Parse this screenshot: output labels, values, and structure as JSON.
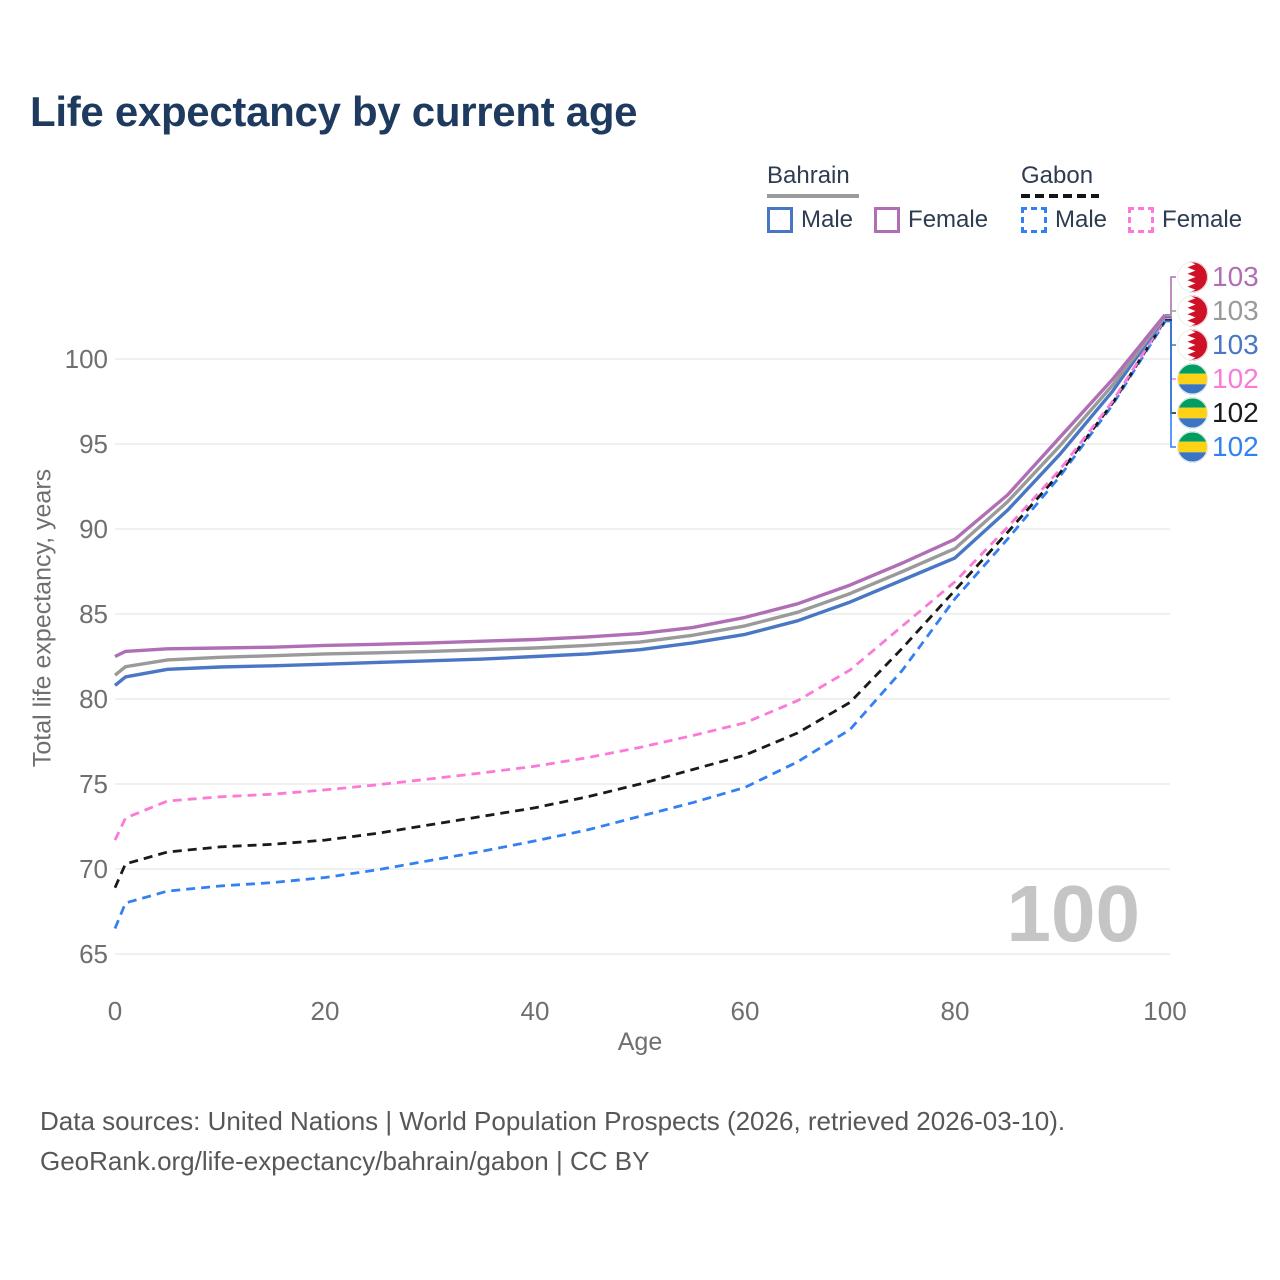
{
  "title": "Life expectancy by current age",
  "watermark": "100",
  "legend": {
    "groups": [
      {
        "label": "Bahrain",
        "line_style": "solid",
        "items": [
          {
            "label": "Male",
            "color": "#4a77c4"
          },
          {
            "label": "Female",
            "color": "#b06fb5"
          }
        ]
      },
      {
        "label": "Gabon",
        "line_style": "dashed",
        "items": [
          {
            "label": "Male",
            "color": "#3380f3"
          },
          {
            "label": "Female",
            "color": "#fb7ad8"
          }
        ]
      }
    ]
  },
  "footer": {
    "line1": "Data sources: United Nations | World Population Prospects (2026, retrieved 2026-03-10).",
    "line2": "GeoRank.org/life-expectancy/bahrain/gabon | CC BY"
  },
  "chart_data": {
    "type": "line",
    "title": "Life expectancy by current age",
    "xlabel": "Age",
    "ylabel": "Total life expectancy, years",
    "xlim": [
      0,
      100
    ],
    "ylim": [
      65,
      103
    ],
    "x_ticks": [
      0,
      20,
      40,
      60,
      80,
      100
    ],
    "y_ticks": [
      65,
      70,
      75,
      80,
      85,
      90,
      95,
      100
    ],
    "grid": "horizontal",
    "x": [
      0,
      1,
      5,
      10,
      15,
      20,
      25,
      30,
      35,
      40,
      45,
      50,
      55,
      60,
      65,
      70,
      75,
      80,
      85,
      90,
      95,
      100
    ],
    "series": [
      {
        "id": "bahrain-female",
        "name": "Bahrain Female",
        "country": "Bahrain",
        "sex": "Female",
        "color": "#b06fb5",
        "dash": "solid",
        "flag": "bahrain",
        "end_label": "103",
        "values": [
          82.5,
          82.8,
          82.95,
          83.0,
          83.05,
          83.15,
          83.22,
          83.3,
          83.4,
          83.5,
          83.65,
          83.85,
          84.2,
          84.8,
          85.6,
          86.7,
          88.0,
          89.4,
          92.0,
          95.4,
          98.8,
          102.6
        ]
      },
      {
        "id": "bahrain-both-sexes",
        "name": "Bahrain Both sexes",
        "country": "Bahrain",
        "sex": "Both sexes",
        "color": "#9a9a9a",
        "dash": "solid",
        "flag": "bahrain",
        "end_label": "103",
        "values": [
          81.4,
          81.9,
          82.3,
          82.45,
          82.55,
          82.65,
          82.72,
          82.8,
          82.9,
          83.0,
          83.15,
          83.35,
          83.75,
          84.3,
          85.1,
          86.2,
          87.5,
          88.85,
          91.6,
          94.9,
          98.45,
          102.5
        ]
      },
      {
        "id": "bahrain-male",
        "name": "Bahrain Male",
        "country": "Bahrain",
        "sex": "Male",
        "color": "#4a77c4",
        "dash": "solid",
        "flag": "bahrain",
        "end_label": "103",
        "values": [
          80.8,
          81.3,
          81.75,
          81.88,
          81.95,
          82.05,
          82.15,
          82.25,
          82.35,
          82.5,
          82.65,
          82.9,
          83.3,
          83.8,
          84.6,
          85.7,
          87.0,
          88.3,
          91.1,
          94.4,
          98.1,
          102.45
        ]
      },
      {
        "id": "gabon-female",
        "name": "Gabon Female",
        "country": "Gabon",
        "sex": "Female",
        "color": "#fb7ad8",
        "dash": "dashed",
        "flag": "gabon",
        "end_label": "102",
        "values": [
          71.7,
          73.0,
          74.0,
          74.25,
          74.4,
          74.65,
          74.95,
          75.3,
          75.65,
          76.05,
          76.55,
          77.15,
          77.85,
          78.6,
          79.9,
          81.7,
          84.3,
          86.9,
          90.1,
          93.5,
          97.5,
          102.35
        ]
      },
      {
        "id": "gabon-both-sexes",
        "name": "Gabon Both sexes",
        "country": "Gabon",
        "sex": "Both sexes",
        "color": "#1a1a1a",
        "dash": "dashed",
        "flag": "gabon",
        "end_label": "102",
        "values": [
          68.9,
          70.3,
          71.0,
          71.3,
          71.45,
          71.7,
          72.1,
          72.6,
          73.1,
          73.6,
          74.25,
          75.0,
          75.85,
          76.7,
          78.0,
          79.8,
          83.0,
          86.4,
          89.8,
          93.3,
          97.4,
          102.3
        ]
      },
      {
        "id": "gabon-male",
        "name": "Gabon Male",
        "country": "Gabon",
        "sex": "Male",
        "color": "#3380f3",
        "dash": "dashed",
        "flag": "gabon",
        "end_label": "102",
        "values": [
          66.5,
          68.0,
          68.7,
          69.0,
          69.2,
          69.5,
          69.95,
          70.5,
          71.05,
          71.65,
          72.3,
          73.1,
          73.9,
          74.8,
          76.3,
          78.2,
          81.7,
          85.9,
          89.4,
          93.1,
          97.3,
          102.2
        ]
      }
    ],
    "flag_colors": {
      "bahrain_red": "#ce1126",
      "bahrain_white": "#ffffff",
      "gabon_green": "#009e60",
      "gabon_yellow": "#fcd116",
      "gabon_blue": "#3a75c4"
    }
  }
}
